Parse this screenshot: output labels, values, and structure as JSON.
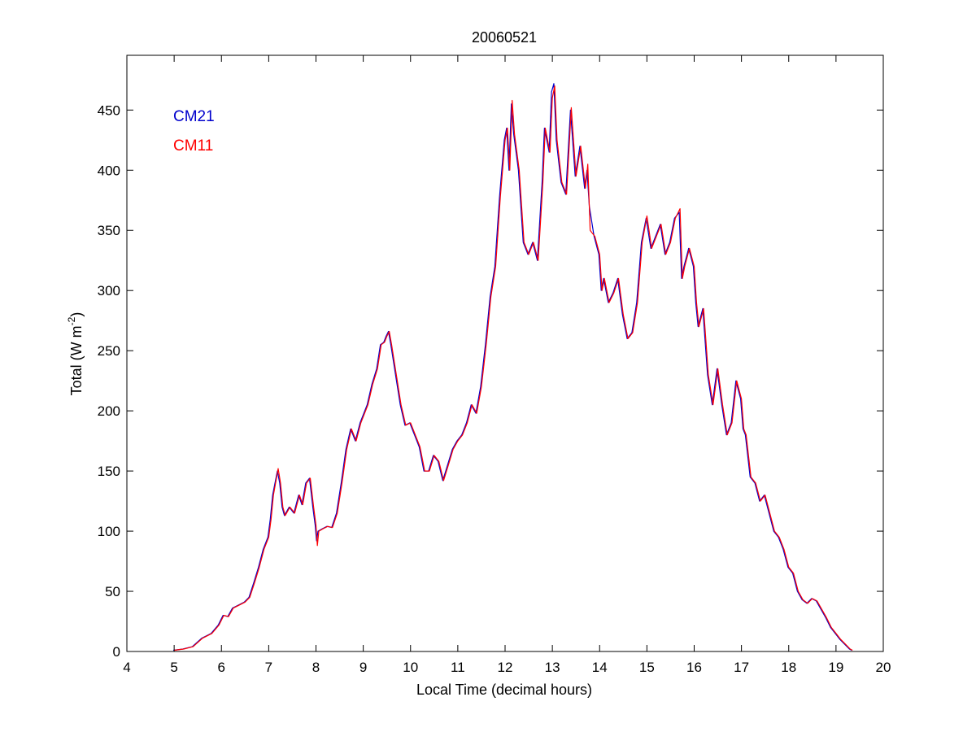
{
  "chart_data": {
    "type": "line",
    "title": "20060521",
    "xlabel": "Local Time (decimal hours)",
    "ylabel": "Total (W m",
    "ylabel_sup": "-2",
    "ylabel_close": ")",
    "xlim": [
      4,
      20
    ],
    "ylim": [
      0,
      500
    ],
    "x_ticks": [
      4,
      5,
      6,
      7,
      8,
      9,
      10,
      11,
      12,
      13,
      14,
      15,
      16,
      17,
      18,
      19,
      20
    ],
    "y_ticks": [
      0,
      50,
      100,
      150,
      200,
      250,
      300,
      350,
      400,
      450
    ],
    "grid": false,
    "legend_position": "top-left",
    "series": [
      {
        "name": "CM21",
        "color": "#0000cc",
        "points": [
          [
            5.0,
            1
          ],
          [
            5.2,
            2
          ],
          [
            5.4,
            4
          ],
          [
            5.6,
            11
          ],
          [
            5.8,
            15
          ],
          [
            5.95,
            22
          ],
          [
            6.05,
            30
          ],
          [
            6.15,
            29
          ],
          [
            6.25,
            36
          ],
          [
            6.4,
            39
          ],
          [
            6.5,
            41
          ],
          [
            6.6,
            45
          ],
          [
            6.7,
            57
          ],
          [
            6.8,
            70
          ],
          [
            6.9,
            85
          ],
          [
            7.0,
            95
          ],
          [
            7.05,
            110
          ],
          [
            7.1,
            130
          ],
          [
            7.2,
            150
          ],
          [
            7.25,
            140
          ],
          [
            7.3,
            120
          ],
          [
            7.35,
            113
          ],
          [
            7.45,
            120
          ],
          [
            7.55,
            115
          ],
          [
            7.65,
            130
          ],
          [
            7.72,
            122
          ],
          [
            7.8,
            140
          ],
          [
            7.88,
            144
          ],
          [
            7.95,
            120
          ],
          [
            8.0,
            105
          ],
          [
            8.03,
            92
          ],
          [
            8.06,
            100
          ],
          [
            8.15,
            102
          ],
          [
            8.25,
            104
          ],
          [
            8.35,
            103
          ],
          [
            8.45,
            115
          ],
          [
            8.55,
            140
          ],
          [
            8.65,
            168
          ],
          [
            8.75,
            185
          ],
          [
            8.85,
            175
          ],
          [
            8.95,
            190
          ],
          [
            9.1,
            205
          ],
          [
            9.2,
            222
          ],
          [
            9.3,
            235
          ],
          [
            9.38,
            255
          ],
          [
            9.45,
            257
          ],
          [
            9.5,
            262
          ],
          [
            9.55,
            266
          ],
          [
            9.6,
            255
          ],
          [
            9.7,
            230
          ],
          [
            9.8,
            205
          ],
          [
            9.9,
            188
          ],
          [
            10.0,
            190
          ],
          [
            10.1,
            180
          ],
          [
            10.2,
            170
          ],
          [
            10.3,
            150
          ],
          [
            10.4,
            150
          ],
          [
            10.5,
            163
          ],
          [
            10.6,
            158
          ],
          [
            10.7,
            142
          ],
          [
            10.8,
            155
          ],
          [
            10.9,
            168
          ],
          [
            11.0,
            175
          ],
          [
            11.1,
            180
          ],
          [
            11.2,
            190
          ],
          [
            11.3,
            205
          ],
          [
            11.4,
            198
          ],
          [
            11.5,
            220
          ],
          [
            11.6,
            255
          ],
          [
            11.7,
            295
          ],
          [
            11.8,
            320
          ],
          [
            11.9,
            378
          ],
          [
            12.0,
            425
          ],
          [
            12.05,
            435
          ],
          [
            12.1,
            400
          ],
          [
            12.15,
            455
          ],
          [
            12.2,
            430
          ],
          [
            12.3,
            400
          ],
          [
            12.4,
            340
          ],
          [
            12.5,
            330
          ],
          [
            12.6,
            340
          ],
          [
            12.7,
            325
          ],
          [
            12.8,
            390
          ],
          [
            12.85,
            435
          ],
          [
            12.95,
            415
          ],
          [
            13.0,
            465
          ],
          [
            13.05,
            472
          ],
          [
            13.1,
            425
          ],
          [
            13.2,
            390
          ],
          [
            13.3,
            380
          ],
          [
            13.4,
            450
          ],
          [
            13.5,
            395
          ],
          [
            13.6,
            420
          ],
          [
            13.7,
            385
          ],
          [
            13.75,
            400
          ],
          [
            13.8,
            370
          ],
          [
            13.9,
            345
          ],
          [
            14.0,
            330
          ],
          [
            14.05,
            300
          ],
          [
            14.1,
            310
          ],
          [
            14.2,
            290
          ],
          [
            14.3,
            298
          ],
          [
            14.4,
            310
          ],
          [
            14.5,
            280
          ],
          [
            14.6,
            260
          ],
          [
            14.7,
            265
          ],
          [
            14.8,
            290
          ],
          [
            14.9,
            340
          ],
          [
            15.0,
            360
          ],
          [
            15.1,
            335
          ],
          [
            15.2,
            345
          ],
          [
            15.3,
            355
          ],
          [
            15.4,
            330
          ],
          [
            15.5,
            340
          ],
          [
            15.6,
            360
          ],
          [
            15.7,
            365
          ],
          [
            15.75,
            310
          ],
          [
            15.8,
            320
          ],
          [
            15.9,
            335
          ],
          [
            16.0,
            320
          ],
          [
            16.05,
            290
          ],
          [
            16.1,
            270
          ],
          [
            16.2,
            285
          ],
          [
            16.3,
            230
          ],
          [
            16.4,
            205
          ],
          [
            16.5,
            235
          ],
          [
            16.6,
            205
          ],
          [
            16.7,
            180
          ],
          [
            16.8,
            190
          ],
          [
            16.9,
            225
          ],
          [
            17.0,
            210
          ],
          [
            17.05,
            185
          ],
          [
            17.1,
            180
          ],
          [
            17.2,
            145
          ],
          [
            17.3,
            140
          ],
          [
            17.4,
            125
          ],
          [
            17.5,
            130
          ],
          [
            17.6,
            115
          ],
          [
            17.7,
            100
          ],
          [
            17.8,
            95
          ],
          [
            17.9,
            85
          ],
          [
            18.0,
            70
          ],
          [
            18.1,
            65
          ],
          [
            18.2,
            50
          ],
          [
            18.3,
            43
          ],
          [
            18.4,
            40
          ],
          [
            18.5,
            44
          ],
          [
            18.6,
            42
          ],
          [
            18.7,
            35
          ],
          [
            18.8,
            28
          ],
          [
            18.9,
            20
          ],
          [
            19.0,
            15
          ],
          [
            19.1,
            10
          ],
          [
            19.2,
            6
          ],
          [
            19.3,
            2
          ],
          [
            19.35,
            1
          ]
        ]
      },
      {
        "name": "CM11",
        "color": "#ff0000",
        "points": [
          [
            5.0,
            1
          ],
          [
            5.2,
            2
          ],
          [
            5.4,
            4
          ],
          [
            5.6,
            11
          ],
          [
            5.8,
            15
          ],
          [
            5.95,
            22
          ],
          [
            6.05,
            30
          ],
          [
            6.15,
            29
          ],
          [
            6.25,
            36
          ],
          [
            6.4,
            39
          ],
          [
            6.5,
            41
          ],
          [
            6.6,
            45
          ],
          [
            6.7,
            57
          ],
          [
            6.8,
            70
          ],
          [
            6.9,
            85
          ],
          [
            7.0,
            95
          ],
          [
            7.05,
            110
          ],
          [
            7.1,
            130
          ],
          [
            7.2,
            152
          ],
          [
            7.25,
            140
          ],
          [
            7.3,
            120
          ],
          [
            7.35,
            113
          ],
          [
            7.45,
            120
          ],
          [
            7.55,
            115
          ],
          [
            7.65,
            130
          ],
          [
            7.72,
            122
          ],
          [
            7.8,
            140
          ],
          [
            7.88,
            144
          ],
          [
            7.95,
            120
          ],
          [
            8.0,
            105
          ],
          [
            8.03,
            88
          ],
          [
            8.06,
            100
          ],
          [
            8.15,
            102
          ],
          [
            8.25,
            104
          ],
          [
            8.35,
            103
          ],
          [
            8.45,
            115
          ],
          [
            8.55,
            140
          ],
          [
            8.65,
            168
          ],
          [
            8.75,
            185
          ],
          [
            8.85,
            175
          ],
          [
            8.95,
            190
          ],
          [
            9.1,
            205
          ],
          [
            9.2,
            222
          ],
          [
            9.3,
            235
          ],
          [
            9.38,
            255
          ],
          [
            9.45,
            257
          ],
          [
            9.5,
            262
          ],
          [
            9.55,
            266
          ],
          [
            9.6,
            255
          ],
          [
            9.7,
            230
          ],
          [
            9.8,
            205
          ],
          [
            9.9,
            188
          ],
          [
            10.0,
            190
          ],
          [
            10.1,
            180
          ],
          [
            10.2,
            170
          ],
          [
            10.3,
            150
          ],
          [
            10.4,
            150
          ],
          [
            10.5,
            163
          ],
          [
            10.6,
            158
          ],
          [
            10.7,
            142
          ],
          [
            10.8,
            155
          ],
          [
            10.9,
            168
          ],
          [
            11.0,
            175
          ],
          [
            11.1,
            180
          ],
          [
            11.2,
            190
          ],
          [
            11.3,
            205
          ],
          [
            11.4,
            198
          ],
          [
            11.5,
            220
          ],
          [
            11.6,
            255
          ],
          [
            11.7,
            295
          ],
          [
            11.8,
            320
          ],
          [
            11.9,
            378
          ],
          [
            12.0,
            425
          ],
          [
            12.05,
            435
          ],
          [
            12.1,
            400
          ],
          [
            12.15,
            458
          ],
          [
            12.2,
            430
          ],
          [
            12.3,
            400
          ],
          [
            12.4,
            340
          ],
          [
            12.5,
            330
          ],
          [
            12.6,
            340
          ],
          [
            12.7,
            325
          ],
          [
            12.8,
            390
          ],
          [
            12.85,
            435
          ],
          [
            12.95,
            415
          ],
          [
            13.0,
            460
          ],
          [
            13.05,
            470
          ],
          [
            13.1,
            425
          ],
          [
            13.2,
            390
          ],
          [
            13.3,
            380
          ],
          [
            13.4,
            452
          ],
          [
            13.5,
            395
          ],
          [
            13.6,
            420
          ],
          [
            13.7,
            385
          ],
          [
            13.75,
            405
          ],
          [
            13.8,
            350
          ],
          [
            13.9,
            345
          ],
          [
            14.0,
            330
          ],
          [
            14.05,
            300
          ],
          [
            14.1,
            310
          ],
          [
            14.2,
            290
          ],
          [
            14.3,
            298
          ],
          [
            14.4,
            310
          ],
          [
            14.5,
            280
          ],
          [
            14.6,
            260
          ],
          [
            14.7,
            265
          ],
          [
            14.8,
            290
          ],
          [
            14.9,
            340
          ],
          [
            15.0,
            362
          ],
          [
            15.1,
            335
          ],
          [
            15.2,
            345
          ],
          [
            15.3,
            355
          ],
          [
            15.4,
            330
          ],
          [
            15.5,
            340
          ],
          [
            15.6,
            360
          ],
          [
            15.7,
            368
          ],
          [
            15.75,
            310
          ],
          [
            15.8,
            320
          ],
          [
            15.9,
            335
          ],
          [
            16.0,
            320
          ],
          [
            16.05,
            290
          ],
          [
            16.1,
            270
          ],
          [
            16.2,
            285
          ],
          [
            16.3,
            230
          ],
          [
            16.4,
            205
          ],
          [
            16.5,
            235
          ],
          [
            16.6,
            205
          ],
          [
            16.7,
            180
          ],
          [
            16.8,
            190
          ],
          [
            16.9,
            225
          ],
          [
            17.0,
            210
          ],
          [
            17.05,
            185
          ],
          [
            17.1,
            180
          ],
          [
            17.2,
            145
          ],
          [
            17.3,
            140
          ],
          [
            17.4,
            125
          ],
          [
            17.5,
            130
          ],
          [
            17.6,
            115
          ],
          [
            17.7,
            100
          ],
          [
            17.8,
            95
          ],
          [
            17.9,
            85
          ],
          [
            18.0,
            70
          ],
          [
            18.1,
            65
          ],
          [
            18.2,
            50
          ],
          [
            18.3,
            43
          ],
          [
            18.4,
            40
          ],
          [
            18.5,
            44
          ],
          [
            18.6,
            42
          ],
          [
            18.7,
            35
          ],
          [
            18.8,
            28
          ],
          [
            18.9,
            20
          ],
          [
            19.0,
            15
          ],
          [
            19.1,
            10
          ],
          [
            19.2,
            6
          ],
          [
            19.3,
            2
          ],
          [
            19.35,
            1
          ]
        ]
      }
    ]
  }
}
